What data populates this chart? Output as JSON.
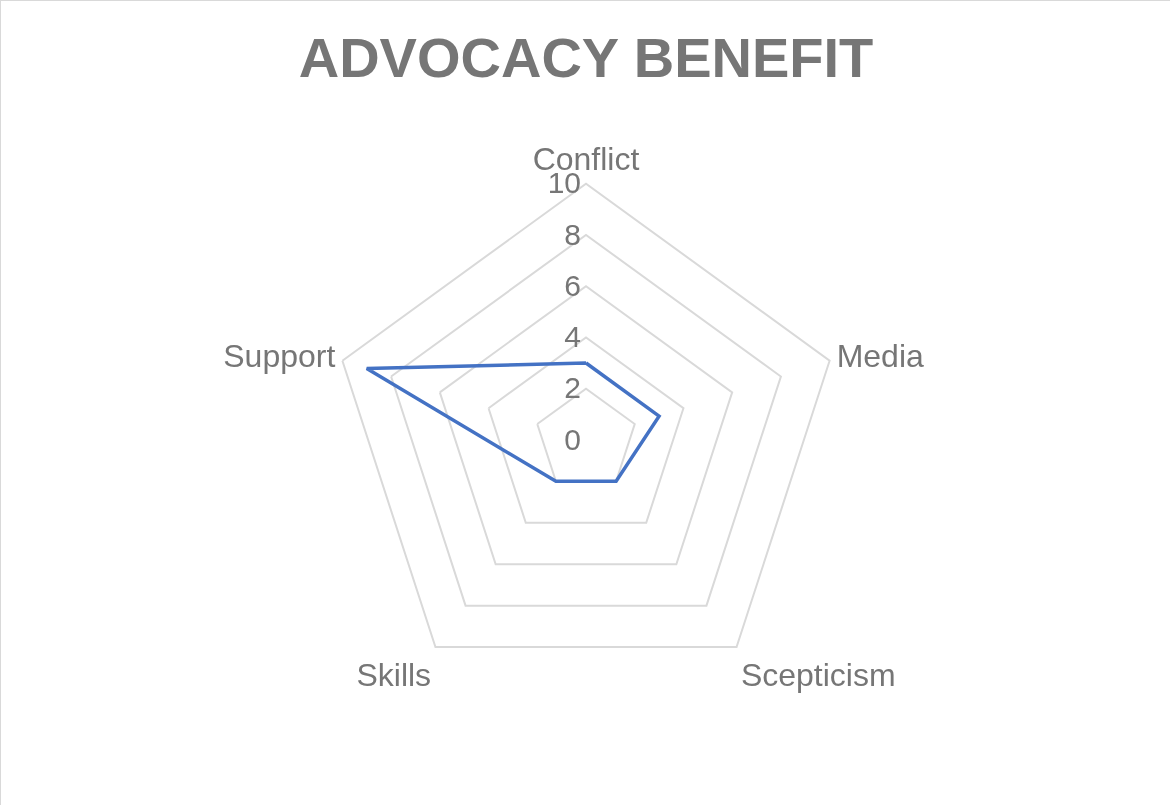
{
  "chart_data": {
    "type": "radar",
    "title": "ADVOCACY BENEFIT",
    "categories": [
      "Conflict",
      "Media",
      "Scepticism",
      "Skills",
      "Support"
    ],
    "series": [
      {
        "color": "#4472c4",
        "values": [
          3,
          3,
          2,
          2,
          9
        ]
      }
    ],
    "ylim": [
      0,
      10
    ],
    "yticks": [
      0,
      2,
      4,
      6,
      8,
      10
    ],
    "grid": true
  }
}
